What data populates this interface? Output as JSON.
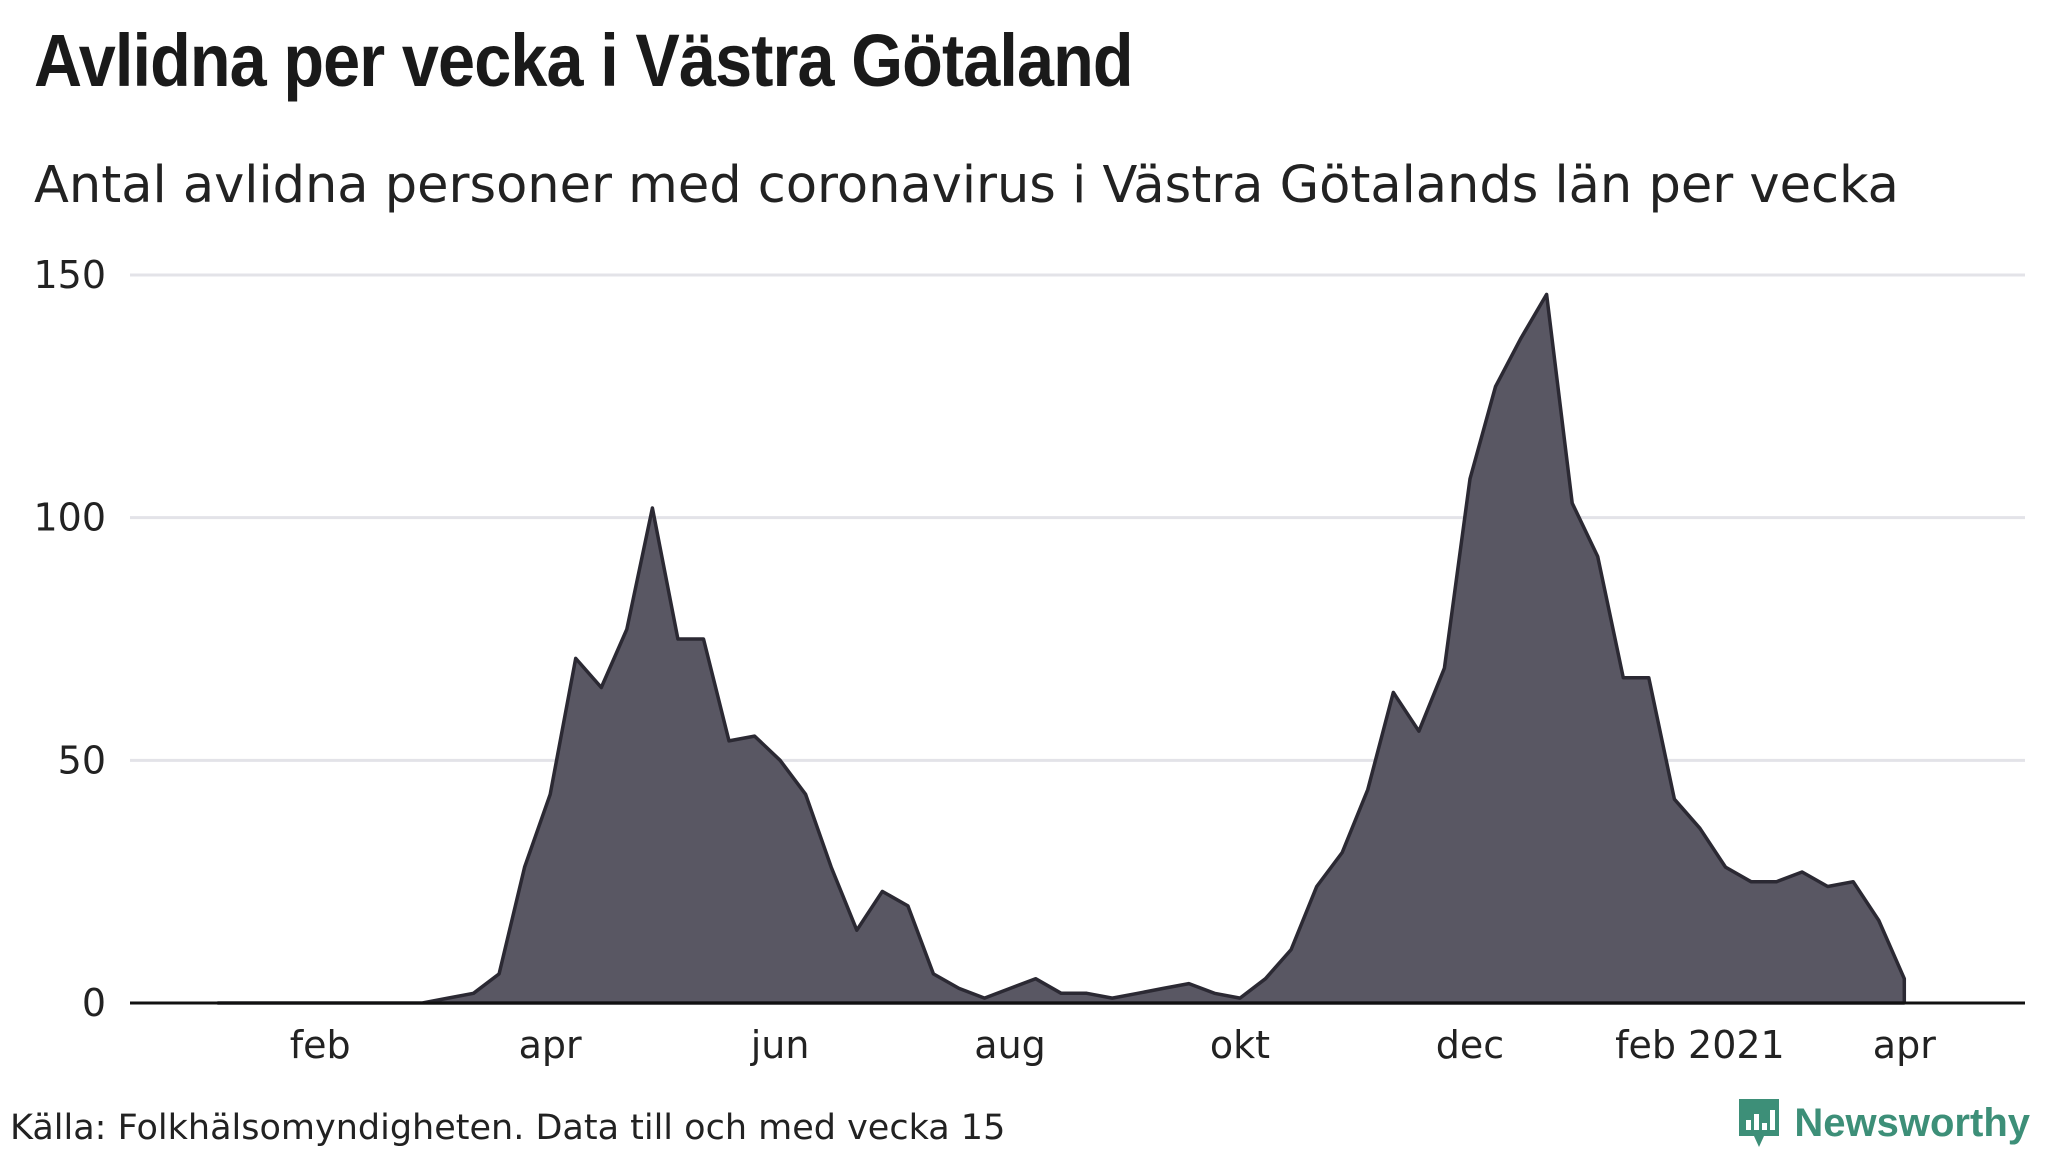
{
  "header": {
    "title": "Avlidna per vecka i Västra Götaland",
    "subtitle": "Antal avlidna personer med coronavirus i Västra Götalands län per vecka"
  },
  "footer": {
    "source": "Källa: Folkhälsomyndigheten. Data till och med vecka 15",
    "brand": "Newsworthy"
  },
  "colors": {
    "area_fill": "#595763",
    "area_stroke": "#2b2933",
    "grid": "#e3e3e8",
    "baseline": "#111111",
    "brand": "#3d8f78"
  },
  "chart_data": {
    "type": "area",
    "title": "Avlidna per vecka i Västra Götaland",
    "xlabel": "",
    "ylabel": "",
    "ylim": [
      0,
      150
    ],
    "y_ticks": [
      0,
      50,
      100,
      150
    ],
    "grid": true,
    "x_ticks": [
      {
        "week_index": 4,
        "label": "feb"
      },
      {
        "week_index": 13,
        "label": "apr"
      },
      {
        "week_index": 22,
        "label": "jun"
      },
      {
        "week_index": 31,
        "label": "aug"
      },
      {
        "week_index": 40,
        "label": "okt"
      },
      {
        "week_index": 49,
        "label": "dec"
      },
      {
        "week_index": 58,
        "label": "feb 2021"
      },
      {
        "week_index": 66,
        "label": "apr"
      }
    ],
    "series": [
      {
        "name": "Avlidna per vecka",
        "values": [
          0,
          0,
          0,
          0,
          0,
          0,
          0,
          0,
          0,
          1,
          2,
          6,
          28,
          43,
          71,
          65,
          77,
          102,
          75,
          75,
          54,
          55,
          50,
          43,
          28,
          15,
          23,
          20,
          6,
          3,
          1,
          3,
          5,
          2,
          2,
          1,
          2,
          3,
          4,
          2,
          1,
          5,
          11,
          24,
          31,
          44,
          64,
          56,
          69,
          108,
          127,
          137,
          146,
          103,
          92,
          67,
          67,
          42,
          36,
          28,
          25,
          25,
          27,
          24,
          25,
          17,
          5
        ]
      }
    ]
  }
}
